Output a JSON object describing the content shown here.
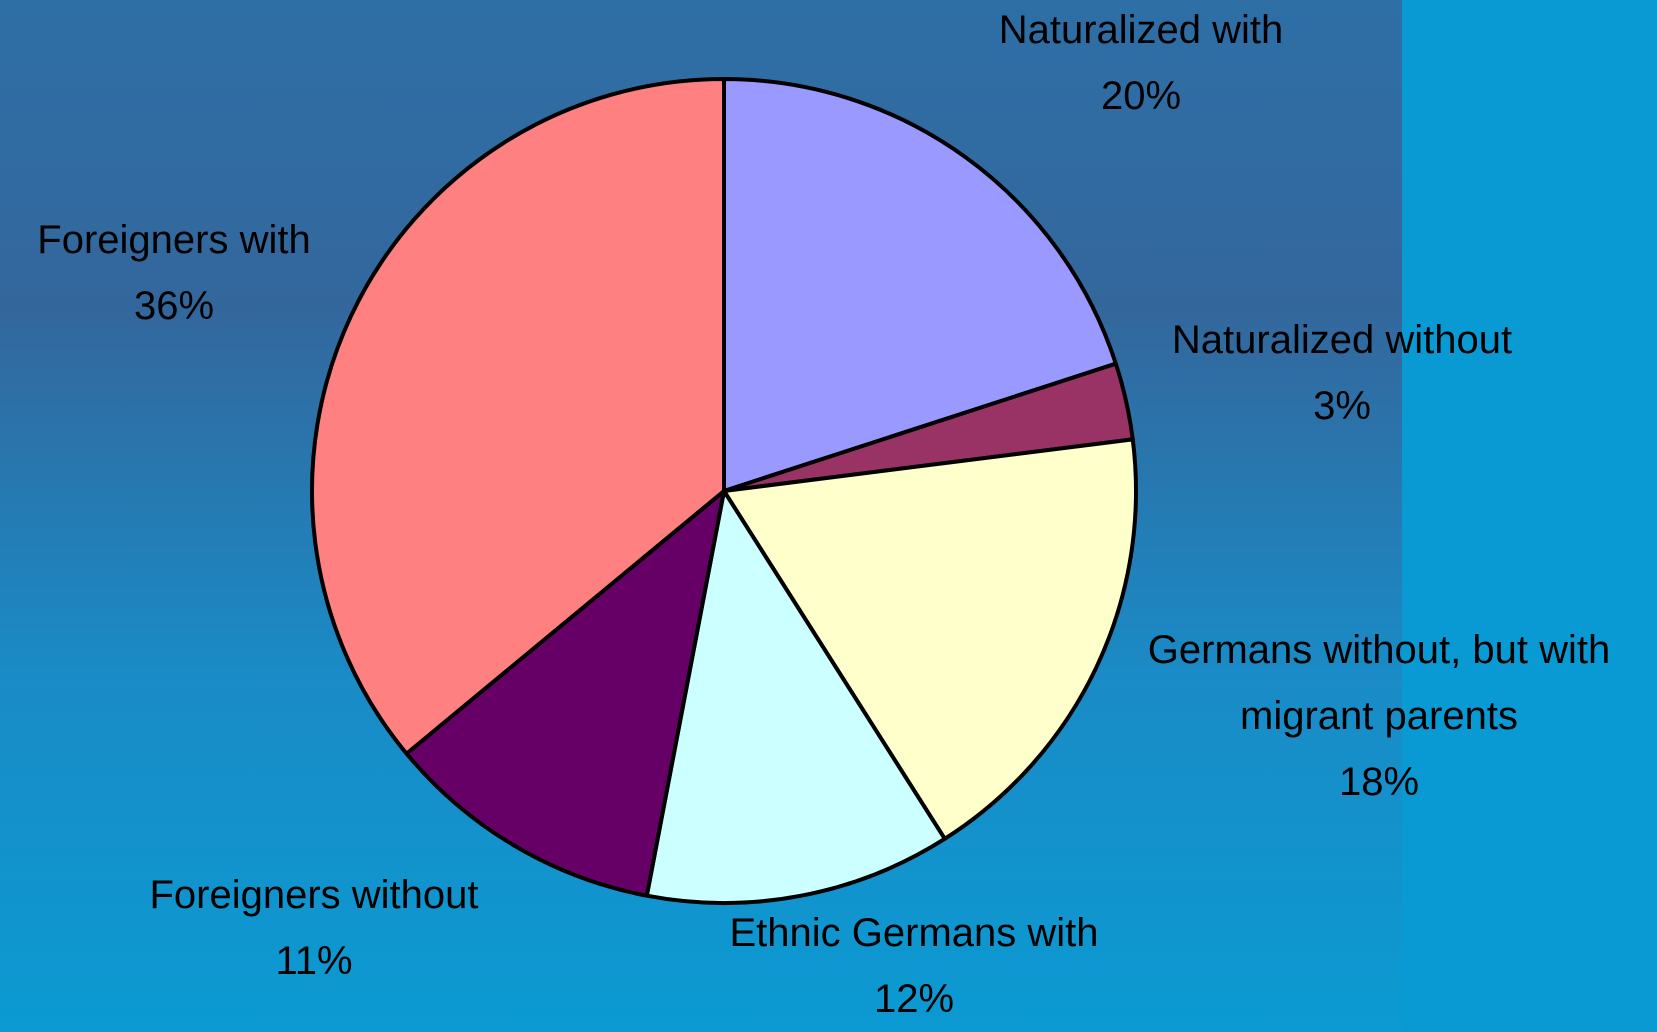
{
  "chart_data": {
    "type": "pie",
    "categories": [
      "Naturalized with",
      "Naturalized without",
      "Germans without, but with migrant parents",
      "Ethnic Germans with",
      "Foreigners without",
      "Foreigners with"
    ],
    "values": [
      20,
      3,
      18,
      12,
      11,
      36
    ],
    "value_labels": [
      "20%",
      "3%",
      "18%",
      "12%",
      "11%",
      "36%"
    ],
    "colors": [
      "#9999ff",
      "#993366",
      "#ffffcc",
      "#ccffff",
      "#660066",
      "#ff8080"
    ]
  }
}
